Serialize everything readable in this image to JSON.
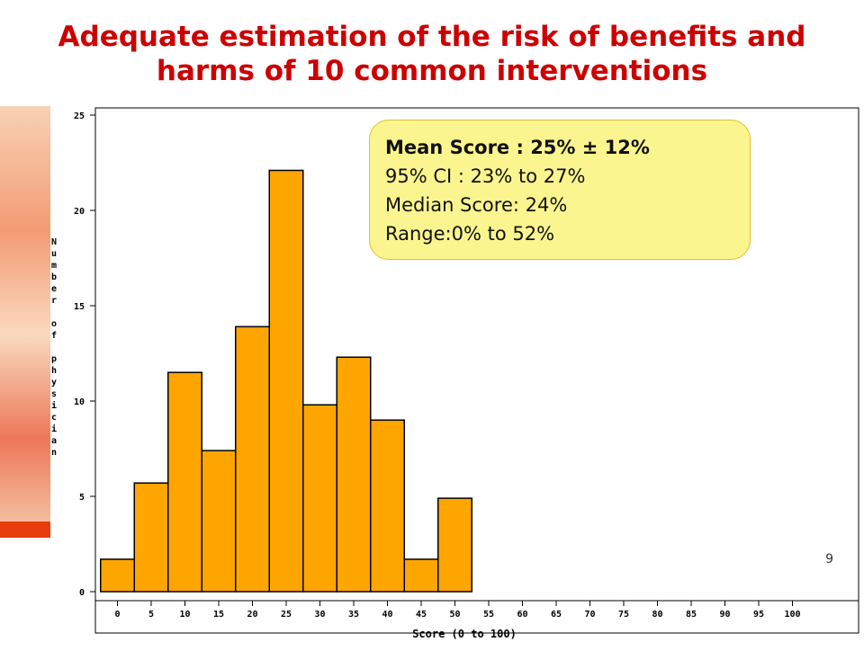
{
  "slide": {
    "title_line1": "Adequate estimation of the risk of benefits and",
    "title_line2": "harms of 10 common interventions",
    "page_number": "9"
  },
  "stats": {
    "mean": "Mean Score : 25% ± 12%",
    "ci": "95% CI : 23% to 27%",
    "median": "Median Score: 24%",
    "range": "Range:0% to 52%"
  },
  "colors": {
    "title": "#cc0000",
    "bar_fill": "#ffa500",
    "stats_box": "#fbf58f"
  },
  "chart_data": {
    "type": "bar",
    "title": "",
    "xlabel": "Score (0 to 100)",
    "ylabel": "Number of physician",
    "categories": [
      "0",
      "5",
      "10",
      "15",
      "20",
      "25",
      "30",
      "35",
      "40",
      "45",
      "50",
      "55",
      "60",
      "65",
      "70",
      "75",
      "80",
      "85",
      "90",
      "95",
      "100"
    ],
    "values": [
      1.7,
      5.7,
      11.5,
      7.4,
      13.9,
      22.1,
      9.8,
      12.3,
      9.0,
      1.7,
      4.9,
      0,
      0,
      0,
      0,
      0,
      0,
      0,
      0,
      0,
      0
    ],
    "yticks": [
      "0",
      "5",
      "10",
      "15",
      "20",
      "25"
    ],
    "ylim": [
      0,
      25
    ],
    "grid": false,
    "legend": "none"
  }
}
